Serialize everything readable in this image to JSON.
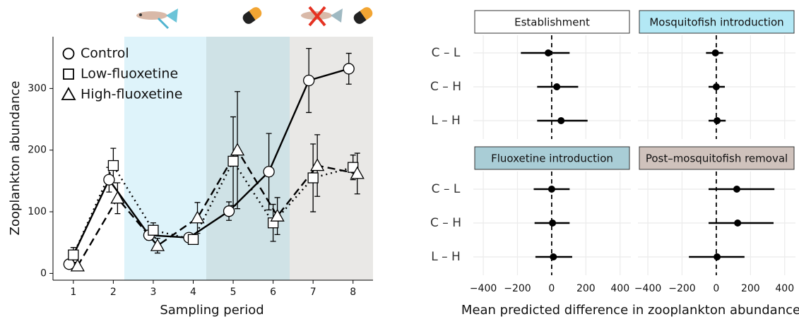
{
  "chart_data": [
    {
      "type": "line",
      "xlabel": "Sampling period",
      "ylabel": "Zooplankton abundance",
      "x": [
        1,
        2,
        3,
        4,
        5,
        6,
        7,
        8
      ],
      "xlim": [
        0.49,
        8.5
      ],
      "xticks": [
        1,
        2,
        3,
        4,
        5,
        6,
        7,
        8
      ],
      "ylim": [
        -11,
        384
      ],
      "yticks": [
        0,
        100,
        200,
        300
      ],
      "legend": "upper left",
      "series": [
        {
          "name": "Control",
          "color": "#000000",
          "marker": "circle",
          "linestyle": "solid",
          "values": [
            15,
            152,
            62,
            58,
            101,
            165,
            313,
            332
          ],
          "errors": [
            5,
            20,
            8,
            5,
            15,
            62,
            52,
            25
          ]
        },
        {
          "name": "Low-fluoxetine",
          "color": "#000000",
          "marker": "square",
          "linestyle": "dotted",
          "values": [
            30,
            175,
            70,
            55,
            182,
            82,
            155,
            172
          ],
          "errors": [
            12,
            28,
            12,
            5,
            72,
            30,
            55,
            20
          ]
        },
        {
          "name": "High-fluoxetine",
          "color": "#000000",
          "marker": "triangle",
          "linestyle": "dashed",
          "values": [
            12,
            122,
            45,
            90,
            200,
            93,
            175,
            162
          ],
          "errors": [
            5,
            25,
            12,
            25,
            95,
            30,
            50,
            33
          ]
        }
      ]
    },
    {
      "type": "forest",
      "xlabel": "Mean predicted difference in zooplankton abundance",
      "categories": [
        "C – L",
        "C – H",
        "L – H"
      ],
      "xlim": [
        -458,
        463
      ],
      "xticks": [
        {
          "value": -400,
          "label": "−400"
        },
        {
          "value": -200,
          "label": "−200"
        },
        0,
        200,
        400
      ],
      "refline": 0,
      "facets": [
        {
          "title": "Establishment",
          "color": "#ffffff",
          "values": [
            -20,
            30,
            55
          ],
          "lower": [
            -180,
            -85,
            -85
          ],
          "upper": [
            105,
            155,
            210
          ]
        },
        {
          "title": "Mosquitofish introduction",
          "color": "#b3e8f5",
          "values": [
            -5,
            0,
            5
          ],
          "lower": [
            -60,
            -45,
            -45
          ],
          "upper": [
            40,
            50,
            55
          ]
        },
        {
          "title": "Fluoxetine introduction",
          "color": "#a9cdd6",
          "values": [
            0,
            5,
            10
          ],
          "lower": [
            -105,
            -100,
            -95
          ],
          "upper": [
            105,
            105,
            120
          ]
        },
        {
          "title": "Post–mosquitofish removal",
          "color": "#cfc2bc",
          "values": [
            120,
            125,
            5
          ],
          "lower": [
            -45,
            -45,
            -160
          ],
          "upper": [
            340,
            335,
            165
          ]
        }
      ]
    }
  ]
}
